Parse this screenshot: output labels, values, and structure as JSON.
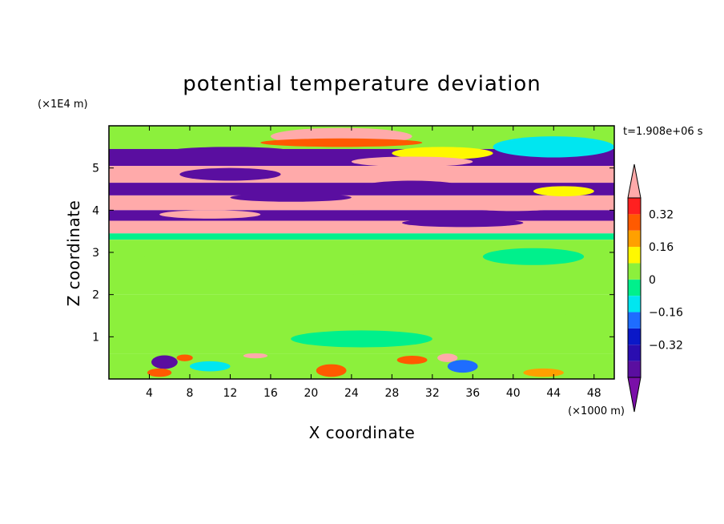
{
  "chart_data": {
    "type": "heatmap",
    "title": "potential temperature deviation",
    "xlabel": "X coordinate",
    "ylabel": "Z coordinate",
    "x_unit": "(×1000 m)",
    "y_unit": "(×1E4 m)",
    "time_label": "t=1.908e+06 s",
    "xlim": [
      0,
      50
    ],
    "ylim": [
      0,
      6
    ],
    "x_ticks": [
      4,
      8,
      12,
      16,
      20,
      24,
      28,
      32,
      36,
      40,
      44,
      48
    ],
    "y_ticks": [
      1,
      2,
      3,
      4,
      5
    ],
    "colorbar": {
      "levels": [
        -0.48,
        -0.4,
        -0.32,
        -0.24,
        -0.16,
        -0.08,
        0,
        0.08,
        0.16,
        0.24,
        0.32,
        0.4
      ],
      "labels": [
        {
          "value": 0.32,
          "text": "0.32"
        },
        {
          "value": 0.16,
          "text": "0.16"
        },
        {
          "value": 0,
          "text": "0"
        },
        {
          "value": -0.16,
          "text": "−0.16"
        },
        {
          "value": -0.32,
          "text": "−0.32"
        }
      ],
      "colors": [
        "#7a0fa8",
        "#5a0ea0",
        "#2a0db0",
        "#0a18c8",
        "#1e6dff",
        "#00e6f0",
        "#00f08c",
        "#8cf03c",
        "#fff800",
        "#ffa000",
        "#ff5a00",
        "#ff2020",
        "#ffaaaa"
      ],
      "extend": "both"
    },
    "bands": [
      {
        "y0": 5.45,
        "y1": 6.0,
        "v": 0.02
      },
      {
        "y0": 5.05,
        "y1": 5.45,
        "v": -0.45
      },
      {
        "y0": 4.65,
        "y1": 5.05,
        "v": 0.45
      },
      {
        "y0": 4.35,
        "y1": 4.65,
        "v": -0.45
      },
      {
        "y0": 4.0,
        "y1": 4.35,
        "v": 0.45
      },
      {
        "y0": 3.75,
        "y1": 4.0,
        "v": -0.45
      },
      {
        "y0": 3.45,
        "y1": 3.75,
        "v": 0.45
      },
      {
        "y0": 3.3,
        "y1": 3.45,
        "v": -0.02
      },
      {
        "y0": 2.0,
        "y1": 3.3,
        "v": 0.05
      },
      {
        "y0": 0.6,
        "y1": 2.0,
        "v": 0.02
      },
      {
        "y0": 0.0,
        "y1": 0.6,
        "v": 0.05
      }
    ],
    "blobs": [
      {
        "x": 23,
        "y": 5.75,
        "rx": 7,
        "ry": 0.2,
        "v": 0.45
      },
      {
        "x": 23,
        "y": 5.6,
        "rx": 8,
        "ry": 0.1,
        "v": 0.25
      },
      {
        "x": 44,
        "y": 5.5,
        "rx": 4.5,
        "ry": 0.13,
        "v": -0.45
      },
      {
        "x": 44,
        "y": 5.5,
        "rx": 6,
        "ry": 0.25,
        "v": -0.1
      },
      {
        "x": 12,
        "y": 5.4,
        "rx": 6,
        "ry": 0.1,
        "v": -0.45
      },
      {
        "x": 33,
        "y": 5.35,
        "rx": 5,
        "ry": 0.15,
        "v": 0.1
      },
      {
        "x": 30,
        "y": 5.15,
        "rx": 6,
        "ry": 0.12,
        "v": 0.45
      },
      {
        "x": 12,
        "y": 4.85,
        "rx": 5,
        "ry": 0.15,
        "v": -0.45
      },
      {
        "x": 30,
        "y": 4.55,
        "rx": 5,
        "ry": 0.15,
        "v": -0.45
      },
      {
        "x": 45,
        "y": 4.45,
        "rx": 3,
        "ry": 0.12,
        "v": 0.1
      },
      {
        "x": 18,
        "y": 4.3,
        "rx": 6,
        "ry": 0.1,
        "v": -0.45
      },
      {
        "x": 40,
        "y": 4.1,
        "rx": 5,
        "ry": 0.12,
        "v": 0.45
      },
      {
        "x": 10,
        "y": 3.9,
        "rx": 5,
        "ry": 0.1,
        "v": 0.45
      },
      {
        "x": 35,
        "y": 3.7,
        "rx": 6,
        "ry": 0.1,
        "v": -0.45
      },
      {
        "x": 20,
        "y": 2.75,
        "rx": 9,
        "ry": 0.3,
        "v": 0.07
      },
      {
        "x": 42,
        "y": 2.9,
        "rx": 5,
        "ry": 0.2,
        "v": -0.02
      },
      {
        "x": 6,
        "y": 2.7,
        "rx": 4,
        "ry": 0.25,
        "v": 0.07
      },
      {
        "x": 30,
        "y": 2.3,
        "rx": 8,
        "ry": 0.25,
        "v": 0.07
      },
      {
        "x": 15,
        "y": 1.5,
        "rx": 8,
        "ry": 0.3,
        "v": 0.06
      },
      {
        "x": 40,
        "y": 1.3,
        "rx": 8,
        "ry": 0.3,
        "v": 0.06
      },
      {
        "x": 25,
        "y": 0.95,
        "rx": 7,
        "ry": 0.2,
        "v": -0.03
      },
      {
        "x": 5.5,
        "y": 0.4,
        "rx": 1.3,
        "ry": 0.16,
        "v": -0.45
      },
      {
        "x": 5,
        "y": 0.15,
        "rx": 1.2,
        "ry": 0.1,
        "v": 0.3
      },
      {
        "x": 7.5,
        "y": 0.5,
        "rx": 0.8,
        "ry": 0.08,
        "v": 0.3
      },
      {
        "x": 14.5,
        "y": 0.55,
        "rx": 1.2,
        "ry": 0.06,
        "v": 0.45
      },
      {
        "x": 22,
        "y": 0.2,
        "rx": 1.5,
        "ry": 0.15,
        "v": 0.25
      },
      {
        "x": 30,
        "y": 0.45,
        "rx": 1.5,
        "ry": 0.1,
        "v": 0.3
      },
      {
        "x": 33.5,
        "y": 0.5,
        "rx": 1,
        "ry": 0.1,
        "v": 0.4
      },
      {
        "x": 35,
        "y": 0.3,
        "rx": 1.5,
        "ry": 0.15,
        "v": -0.2
      },
      {
        "x": 43,
        "y": 0.15,
        "rx": 2,
        "ry": 0.1,
        "v": 0.2
      },
      {
        "x": 10,
        "y": 0.3,
        "rx": 2,
        "ry": 0.12,
        "v": -0.12
      }
    ]
  }
}
